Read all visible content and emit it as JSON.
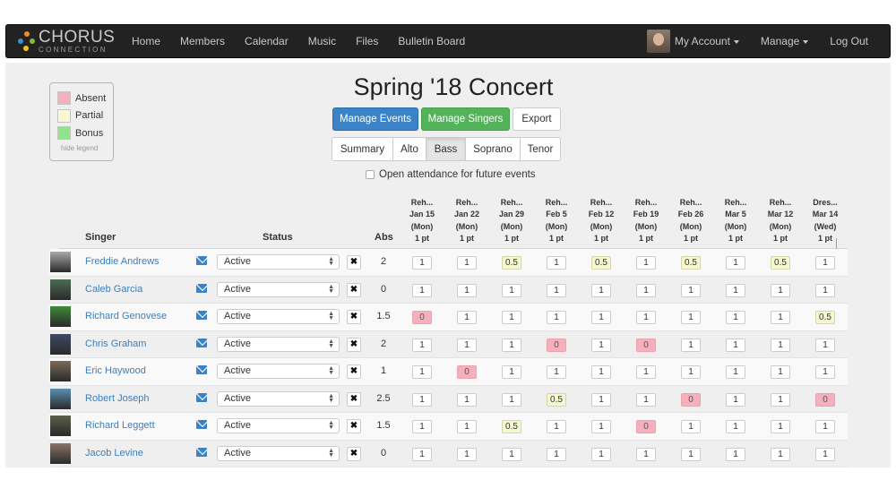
{
  "nav": {
    "logo_line1": "CHORUS",
    "logo_line2": "CONNECTION",
    "links": [
      "Home",
      "Members",
      "Calendar",
      "Music",
      "Files",
      "Bulletin Board"
    ],
    "my_account": "My Account",
    "manage": "Manage",
    "logout": "Log Out"
  },
  "legend": {
    "items": [
      {
        "label": "Absent",
        "color": "#f6b0bd"
      },
      {
        "label": "Partial",
        "color": "#f8f9d0"
      },
      {
        "label": "Bonus",
        "color": "#8fe58a"
      }
    ],
    "hide_label": "hide legend"
  },
  "page": {
    "title": "Spring '18 Concert",
    "buttons": {
      "manage_events": "Manage Events",
      "manage_singers": "Manage Singers",
      "export": "Export"
    },
    "tabs": [
      "Summary",
      "Alto",
      "Bass",
      "Soprano",
      "Tenor"
    ],
    "active_tab": "Bass",
    "open_attendance_label": "Open attendance for future events"
  },
  "table": {
    "headers": {
      "singer": "Singer",
      "status": "Status",
      "abs": "Abs"
    },
    "events": [
      {
        "name": "Reh...",
        "date": "Jan 15",
        "day": "(Mon)",
        "pts": "1 pt"
      },
      {
        "name": "Reh...",
        "date": "Jan 22",
        "day": "(Mon)",
        "pts": "1 pt"
      },
      {
        "name": "Reh...",
        "date": "Jan 29",
        "day": "(Mon)",
        "pts": "1 pt"
      },
      {
        "name": "Reh...",
        "date": "Feb 5",
        "day": "(Mon)",
        "pts": "1 pt"
      },
      {
        "name": "Reh...",
        "date": "Feb 12",
        "day": "(Mon)",
        "pts": "1 pt"
      },
      {
        "name": "Reh...",
        "date": "Feb 19",
        "day": "(Mon)",
        "pts": "1 pt"
      },
      {
        "name": "Reh...",
        "date": "Feb 26",
        "day": "(Mon)",
        "pts": "1 pt"
      },
      {
        "name": "Reh...",
        "date": "Mar 5",
        "day": "(Mon)",
        "pts": "1 pt"
      },
      {
        "name": "Reh...",
        "date": "Mar 12",
        "day": "(Mon)",
        "pts": "1 pt"
      },
      {
        "name": "Dres...",
        "date": "Mar 14",
        "day": "(Wed)",
        "pts": "1 pt"
      }
    ],
    "rows": [
      {
        "name": "Freddie Andrews",
        "status": "Active",
        "abs": "2",
        "photo": "#a9a9a9",
        "values": [
          "1",
          "1",
          "0.5",
          "1",
          "0.5",
          "1",
          "0.5",
          "1",
          "0.5",
          "1"
        ]
      },
      {
        "name": "Caleb Garcia",
        "status": "Active",
        "abs": "0",
        "photo": "#4d6b55",
        "values": [
          "1",
          "1",
          "1",
          "1",
          "1",
          "1",
          "1",
          "1",
          "1",
          "1"
        ]
      },
      {
        "name": "Richard Genovese",
        "status": "Active",
        "abs": "1.5",
        "photo": "#3f8a3a",
        "values": [
          "0",
          "1",
          "1",
          "1",
          "1",
          "1",
          "1",
          "1",
          "1",
          "0.5"
        ]
      },
      {
        "name": "Chris Graham",
        "status": "Active",
        "abs": "2",
        "photo": "#3e4a66",
        "values": [
          "1",
          "1",
          "1",
          "0",
          "1",
          "0",
          "1",
          "1",
          "1",
          "1"
        ]
      },
      {
        "name": "Eric Haywood",
        "status": "Active",
        "abs": "1",
        "photo": "#7b6a58",
        "values": [
          "1",
          "0",
          "1",
          "1",
          "1",
          "1",
          "1",
          "1",
          "1",
          "1"
        ]
      },
      {
        "name": "Robert Joseph",
        "status": "Active",
        "abs": "2.5",
        "photo": "#5a8fb0",
        "values": [
          "1",
          "1",
          "1",
          "0.5",
          "1",
          "1",
          "0",
          "1",
          "1",
          "0"
        ]
      },
      {
        "name": "Richard Leggett",
        "status": "Active",
        "abs": "1.5",
        "photo": "#5b5f4a",
        "values": [
          "1",
          "1",
          "0.5",
          "1",
          "1",
          "0",
          "1",
          "1",
          "1",
          "1"
        ]
      },
      {
        "name": "Jacob Levine",
        "status": "Active",
        "abs": "0",
        "photo": "#8a7566",
        "values": [
          "1",
          "1",
          "1",
          "1",
          "1",
          "1",
          "1",
          "1",
          "1",
          "1"
        ]
      }
    ]
  }
}
